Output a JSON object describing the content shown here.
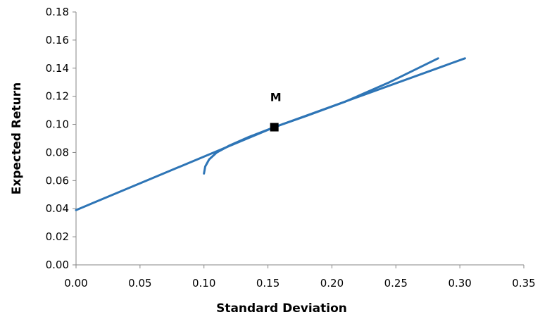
{
  "chart_data": {
    "type": "line",
    "xlabel": "Standard Deviation",
    "ylabel": "Expected Return",
    "xlim": [
      0,
      0.35
    ],
    "ylim": [
      0,
      0.18
    ],
    "x_ticks": [
      "0.00",
      "0.05",
      "0.10",
      "0.15",
      "0.20",
      "0.25",
      "0.30",
      "0.35"
    ],
    "y_ticks": [
      "0.00",
      "0.02",
      "0.04",
      "0.06",
      "0.08",
      "0.10",
      "0.12",
      "0.14",
      "0.16",
      "0.18"
    ],
    "grid": false,
    "legend": "none",
    "series": [
      {
        "color": "#2e75b6",
        "x": [
          0.0,
          0.155,
          0.304
        ],
        "y": [
          0.039,
          0.098,
          0.147
        ]
      },
      {
        "color": "#2e75b6",
        "x": [
          0.1,
          0.101,
          0.104,
          0.11,
          0.12,
          0.135,
          0.155,
          0.18,
          0.21,
          0.245,
          0.283
        ],
        "y": [
          0.065,
          0.07,
          0.075,
          0.08,
          0.085,
          0.091,
          0.098,
          0.106,
          0.116,
          0.13,
          0.147
        ]
      }
    ],
    "points": [
      {
        "label": "M",
        "x": 0.155,
        "y": 0.098,
        "color": "#000000"
      }
    ]
  }
}
